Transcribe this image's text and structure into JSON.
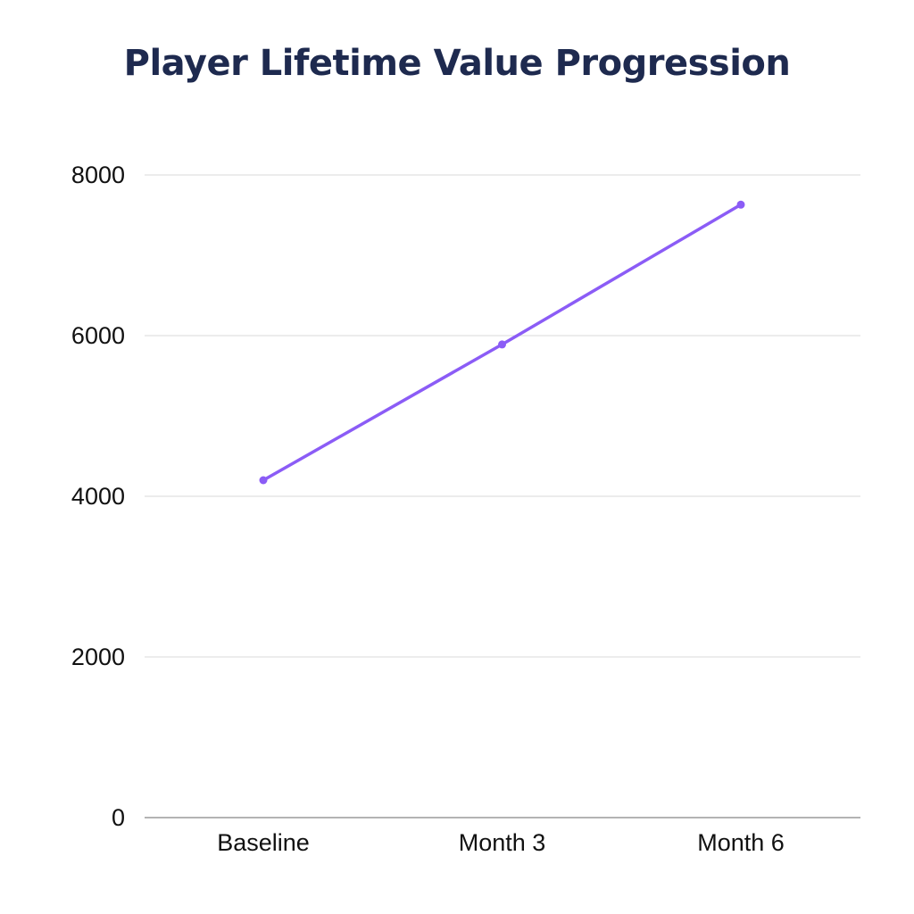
{
  "chart_data": {
    "type": "line",
    "title": "Player Lifetime Value Progression",
    "xlabel": "",
    "ylabel": "",
    "categories": [
      "Baseline",
      "Month 3",
      "Month 6"
    ],
    "series": [
      {
        "values": [
          4200,
          5890,
          7630
        ],
        "color": "#8b5cf6"
      }
    ],
    "ylim": [
      0,
      8000
    ],
    "yticks": [
      "0",
      "2000",
      "4000",
      "6000",
      "8000"
    ],
    "grid": true,
    "legend": "none"
  }
}
